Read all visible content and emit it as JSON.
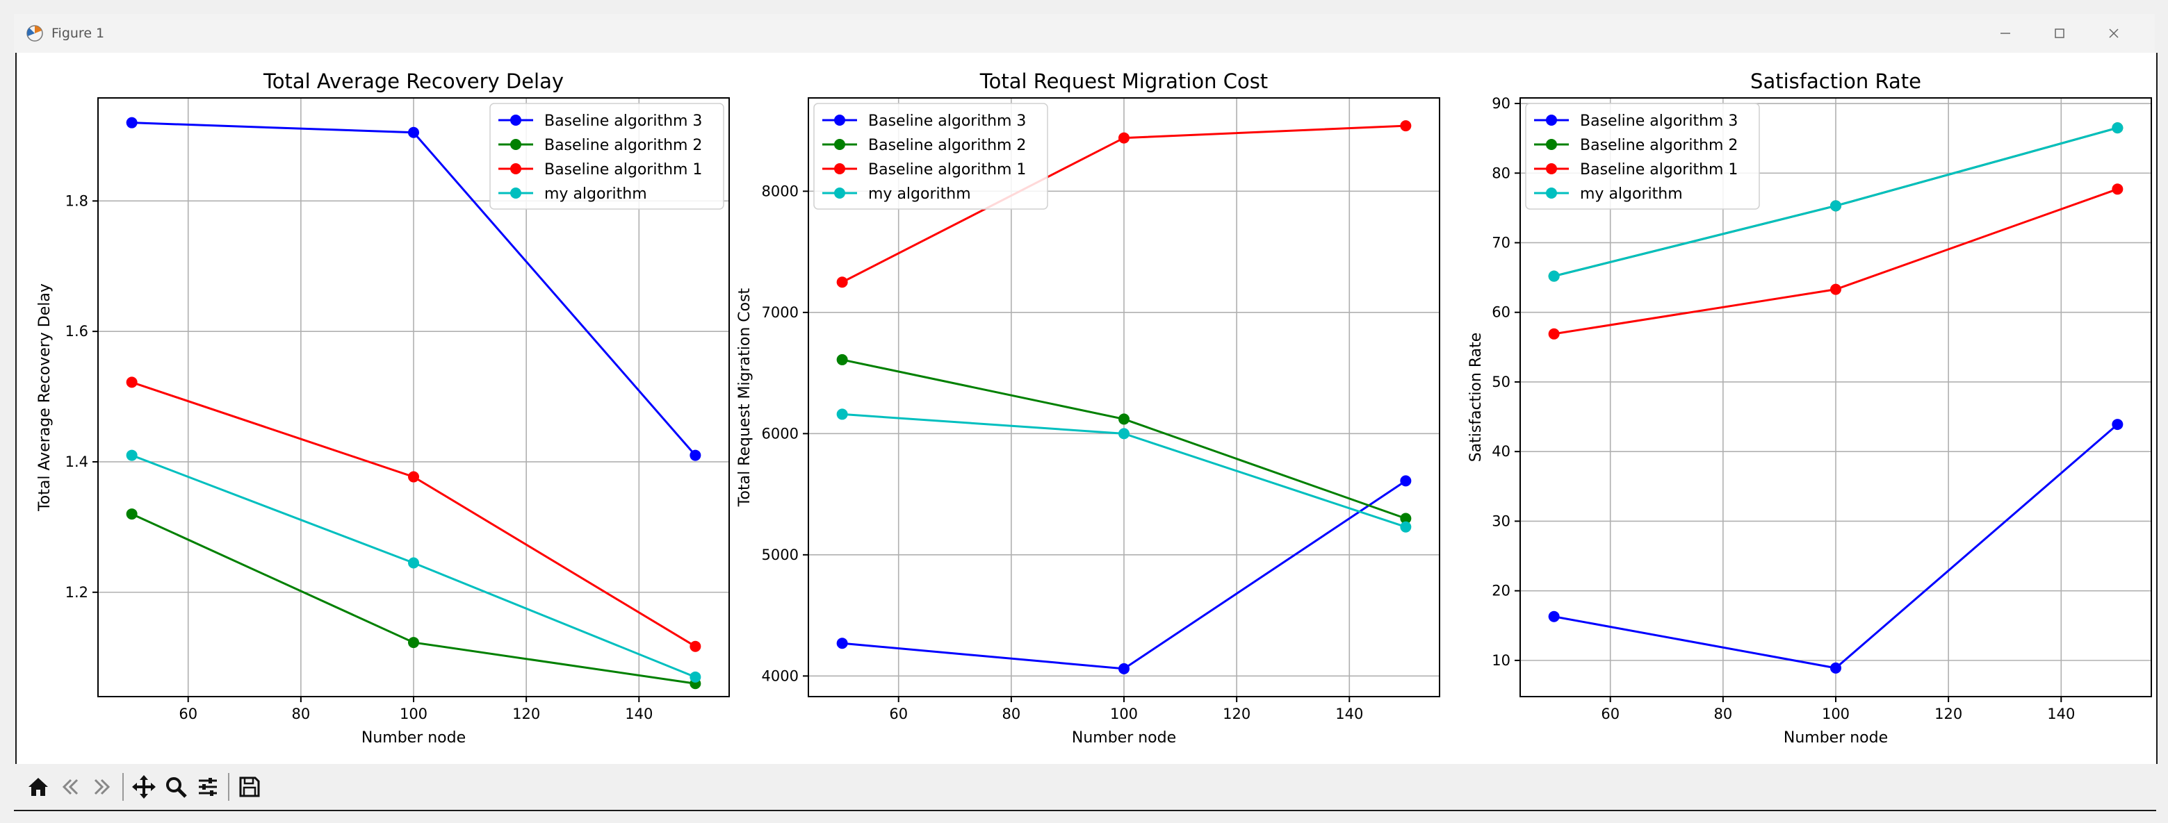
{
  "window": {
    "title": "Figure 1",
    "controls": [
      "minimize-icon",
      "maximize-icon",
      "close-icon"
    ]
  },
  "toolbar": {
    "buttons": [
      "home-icon",
      "back-icon",
      "forward-icon",
      "pan-icon",
      "zoom-icon",
      "configure-subplots-icon",
      "save-icon"
    ]
  },
  "chart_data": [
    {
      "type": "line",
      "title": "Total Average Recovery Delay",
      "xlabel": "Number node",
      "ylabel": "Total Average Recovery Delay",
      "x": [
        50,
        100,
        150
      ],
      "xlim": [
        44,
        156
      ],
      "ylim": [
        1.04,
        1.958
      ],
      "xticks": [
        60,
        80,
        100,
        120,
        140
      ],
      "yticks": [
        1.2,
        1.4,
        1.6,
        1.8
      ],
      "ytick_labels": [
        "1.2",
        "1.4",
        "1.6",
        "1.8"
      ],
      "grid": true,
      "legend_position": "upper right",
      "series": [
        {
          "name": "Baseline algorithm 3",
          "color": "#0000ff",
          "values": [
            1.92,
            1.905,
            1.41
          ]
        },
        {
          "name": "Baseline algorithm 2",
          "color": "#008000",
          "values": [
            1.32,
            1.123,
            1.06
          ]
        },
        {
          "name": "Baseline algorithm 1",
          "color": "#ff0000",
          "values": [
            1.522,
            1.377,
            1.117
          ]
        },
        {
          "name": "my algorithm",
          "color": "#00bfbf",
          "values": [
            1.41,
            1.245,
            1.07
          ]
        }
      ]
    },
    {
      "type": "line",
      "title": "Total Request Migration Cost",
      "xlabel": "Number node",
      "ylabel": "Total Request Migration Cost",
      "x": [
        50,
        100,
        150
      ],
      "xlim": [
        44,
        156
      ],
      "ylim": [
        3830,
        8770
      ],
      "xticks": [
        60,
        80,
        100,
        120,
        140
      ],
      "yticks": [
        4000,
        5000,
        6000,
        7000,
        8000
      ],
      "ytick_labels": [
        "4000",
        "5000",
        "6000",
        "7000",
        "8000"
      ],
      "grid": true,
      "legend_position": "upper left",
      "series": [
        {
          "name": "Baseline algorithm 3",
          "color": "#0000ff",
          "values": [
            4270,
            4060,
            5610
          ]
        },
        {
          "name": "Baseline algorithm 2",
          "color": "#008000",
          "values": [
            6610,
            6120,
            5300
          ]
        },
        {
          "name": "Baseline algorithm 1",
          "color": "#ff0000",
          "values": [
            7250,
            8440,
            8540
          ]
        },
        {
          "name": "my algorithm",
          "color": "#00bfbf",
          "values": [
            6160,
            6000,
            5230
          ]
        }
      ]
    },
    {
      "type": "line",
      "title": "Satisfaction Rate",
      "xlabel": "Number node",
      "ylabel": "Satisfaction Rate",
      "x": [
        50,
        100,
        150
      ],
      "xlim": [
        44,
        156
      ],
      "ylim": [
        4.8,
        90.8
      ],
      "xticks": [
        60,
        80,
        100,
        120,
        140
      ],
      "yticks": [
        10,
        20,
        30,
        40,
        50,
        60,
        70,
        80,
        90
      ],
      "ytick_labels": [
        "10",
        "20",
        "30",
        "40",
        "50",
        "60",
        "70",
        "80",
        "90"
      ],
      "grid": true,
      "legend_position": "upper left",
      "series": [
        {
          "name": "Baseline algorithm 3",
          "color": "#0000ff",
          "values": [
            16.3,
            8.9,
            43.9
          ]
        },
        {
          "name": "Baseline algorithm 2",
          "color": "#008000",
          "values": [
            65.2,
            75.3,
            86.5
          ]
        },
        {
          "name": "Baseline algorithm 1",
          "color": "#ff0000",
          "values": [
            56.9,
            63.3,
            77.7
          ]
        },
        {
          "name": "my algorithm",
          "color": "#00bfbf",
          "values": [
            65.2,
            75.3,
            86.5
          ]
        }
      ]
    }
  ]
}
